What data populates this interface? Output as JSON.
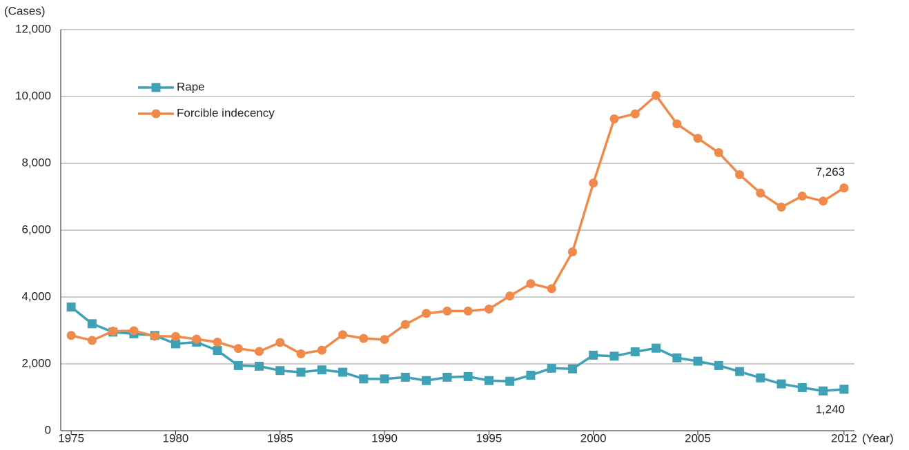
{
  "chart_data": {
    "type": "line",
    "y_label": "(Cases)",
    "x_label": "(Year)",
    "x": [
      1975,
      1976,
      1977,
      1978,
      1979,
      1980,
      1981,
      1982,
      1983,
      1984,
      1985,
      1986,
      1987,
      1988,
      1989,
      1990,
      1991,
      1992,
      1993,
      1994,
      1995,
      1996,
      1997,
      1998,
      1999,
      2000,
      2001,
      2002,
      2003,
      2004,
      2005,
      2006,
      2007,
      2008,
      2009,
      2010,
      2011,
      2012
    ],
    "xlim": [
      1974.5,
      2012.5
    ],
    "xticks": [
      1975,
      1980,
      1985,
      1990,
      1995,
      2000,
      2005,
      2012
    ],
    "ylim": [
      0,
      12000
    ],
    "yticks": [
      0,
      {
        "value": 2000,
        "label": "2,000"
      },
      {
        "value": 4000,
        "label": "4,000"
      },
      {
        "value": 6000,
        "label": "6,000"
      },
      {
        "value": 8000,
        "label": "8,000"
      },
      {
        "value": 10000,
        "label": "10,000"
      },
      {
        "value": 12000,
        "label": "12,000"
      }
    ],
    "grid": true,
    "legend": "upper left",
    "series": [
      {
        "name": "Rape",
        "color": "#3fa1b5",
        "marker": "square",
        "values": [
          3700,
          3200,
          2950,
          2900,
          2850,
          2600,
          2650,
          2400,
          1950,
          1930,
          1800,
          1750,
          1820,
          1750,
          1550,
          1550,
          1600,
          1500,
          1600,
          1620,
          1500,
          1480,
          1660,
          1870,
          1850,
          2260,
          2230,
          2360,
          2470,
          2180,
          2080,
          1950,
          1770,
          1580,
          1400,
          1290,
          1190,
          1240
        ],
        "value_labels": [
          null,
          null,
          null,
          null,
          null,
          null,
          null,
          null,
          null,
          null,
          null,
          null,
          null,
          null,
          null,
          null,
          null,
          null,
          null,
          null,
          null,
          null,
          null,
          null,
          null,
          null,
          null,
          null,
          null,
          null,
          null,
          null,
          null,
          null,
          null,
          null,
          null,
          "1,240"
        ],
        "label_position": "below"
      },
      {
        "name": "Forcible indecency",
        "color": "#f08a4b",
        "marker": "circle",
        "values": [
          2850,
          2700,
          2980,
          2990,
          2830,
          2820,
          2740,
          2650,
          2460,
          2370,
          2640,
          2300,
          2410,
          2870,
          2760,
          2730,
          3180,
          3510,
          3580,
          3580,
          3640,
          4030,
          4400,
          4250,
          5350,
          7410,
          9330,
          9480,
          10030,
          9180,
          8750,
          8320,
          7660,
          7110,
          6690,
          7020,
          6870,
          7263
        ],
        "value_labels": [
          null,
          null,
          null,
          null,
          null,
          null,
          null,
          null,
          null,
          null,
          null,
          null,
          null,
          null,
          null,
          null,
          null,
          null,
          null,
          null,
          null,
          null,
          null,
          null,
          null,
          null,
          null,
          null,
          null,
          null,
          null,
          null,
          null,
          null,
          null,
          null,
          null,
          "7,263"
        ],
        "label_position": "above"
      }
    ]
  }
}
